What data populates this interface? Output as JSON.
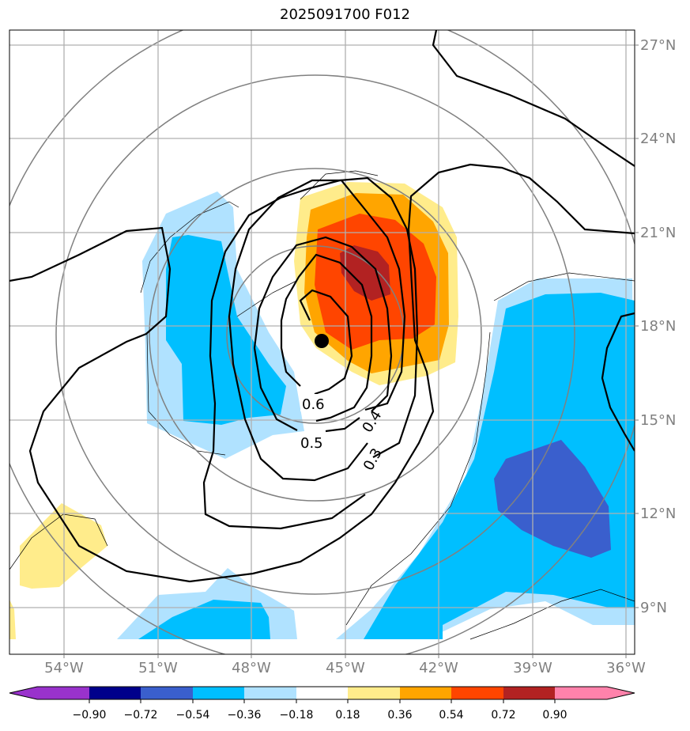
{
  "title": "2025091700 F012",
  "map": {
    "lon_labels": [
      "54°W",
      "51°W",
      "48°W",
      "45°W",
      "42°W",
      "39°W",
      "36°W"
    ],
    "lat_labels": [
      "27°N",
      "24°N",
      "21°N",
      "18°N",
      "15°N",
      "12°N",
      "9°N"
    ],
    "lon_range": [
      -55.7,
      -35.8
    ],
    "lat_range": [
      7.5,
      27.5
    ],
    "storm_center": {
      "lon": -45.7,
      "lat": 17.5
    }
  },
  "contour_labels": [
    "0.6",
    "0.5",
    "0.4",
    "0.3"
  ],
  "colorbar": {
    "labels": [
      "−0.90",
      "−0.72",
      "−0.54",
      "−0.36",
      "−0.18",
      "0.18",
      "0.36",
      "0.54",
      "0.72",
      "0.90"
    ],
    "colors": {
      "lt_neg090": "#9932cc",
      "neg090_neg072": "#00008b",
      "neg072_neg054": "#3a5fcd",
      "neg054_neg036": "#00bfff",
      "neg036_neg018": "#b0e2ff",
      "neg018_018": "#ffffff",
      "p018_036": "#ffec8b",
      "p036_054": "#ffa500",
      "p054_072": "#ff4500",
      "p072_090": "#b22222",
      "gt_090": "#ff82ab"
    }
  }
}
